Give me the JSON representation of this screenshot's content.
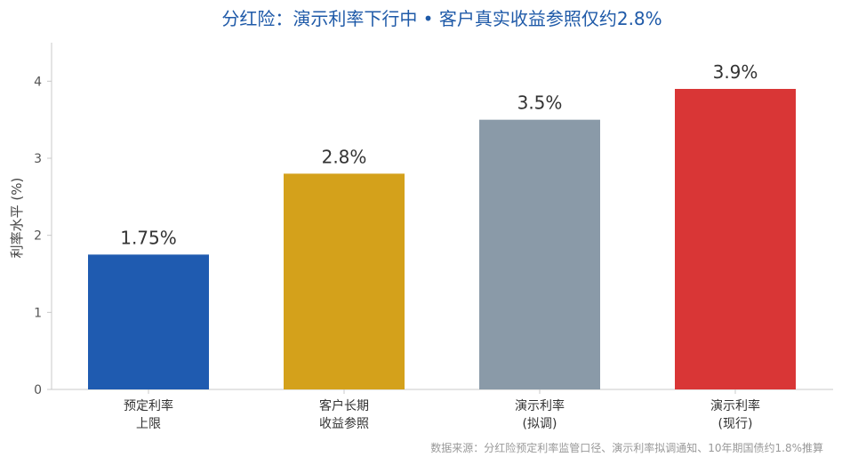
{
  "chart_data": {
    "type": "bar",
    "title": "分红险：演示利率下行中 • 客户真实收益参照仅约2.8%",
    "ylabel": "利率水平 (%)",
    "xlabel": "",
    "ylim": [
      0,
      4.5
    ],
    "yticks": [
      "0",
      "1",
      "2",
      "3",
      "4"
    ],
    "categories": [
      [
        "预定利率",
        "上限"
      ],
      [
        "客户长期",
        "收益参照"
      ],
      [
        "演示利率",
        "(拟调)"
      ],
      [
        "演示利率",
        "(现行)"
      ]
    ],
    "values": [
      1.75,
      2.8,
      3.5,
      3.9
    ],
    "value_labels": [
      "1.75%",
      "2.8%",
      "3.5%",
      "3.9%"
    ],
    "colors": [
      "#1f5bb0",
      "#d4a11b",
      "#8a9aa8",
      "#d93636"
    ],
    "grid": false
  },
  "source_note": "数据来源：分红险预定利率监管口径、演示利率拟调通知、10年期国债约1.8%推算"
}
